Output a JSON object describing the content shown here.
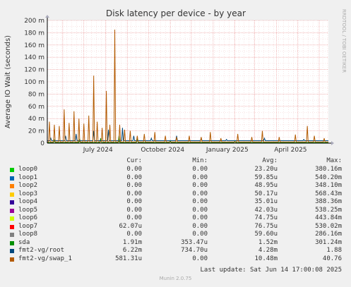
{
  "chart_data": {
    "type": "line",
    "title": "Disk latency per device - by year",
    "ylabel": "Average IO Wait (seconds)",
    "y_ticks": [
      "0",
      "20 m",
      "40 m",
      "60 m",
      "80 m",
      "100 m",
      "120 m",
      "140 m",
      "160 m",
      "180 m",
      "200 m"
    ],
    "y_tick_values": [
      0,
      0.02,
      0.04,
      0.06,
      0.08,
      0.1,
      0.12,
      0.14,
      0.16,
      0.18,
      0.2
    ],
    "ylim": [
      0,
      0.2
    ],
    "x_ticks": [
      "July 2024",
      "October 2024",
      "January 2025",
      "April 2025"
    ],
    "x_tick_dates": [
      "2024-07-01",
      "2024-10-01",
      "2025-01-01",
      "2025-04-01"
    ],
    "xlim": [
      "2024-05-10",
      "2025-06-14"
    ],
    "grid": true,
    "side_text": "RRDTOOL / TOBI OETIKER",
    "series": [
      {
        "name": "loop0",
        "color": "#00cc00"
      },
      {
        "name": "loop1",
        "color": "#0066b3"
      },
      {
        "name": "loop2",
        "color": "#ff8000"
      },
      {
        "name": "loop3",
        "color": "#ffcc00"
      },
      {
        "name": "loop4",
        "color": "#330099"
      },
      {
        "name": "loop5",
        "color": "#990099"
      },
      {
        "name": "loop6",
        "color": "#ccff00"
      },
      {
        "name": "loop7",
        "color": "#ff0000"
      },
      {
        "name": "loop8",
        "color": "#808080"
      },
      {
        "name": "sda",
        "color": "#008f00"
      },
      {
        "name": "fmt2-vg/root",
        "color": "#00487d"
      },
      {
        "name": "fmt2-vg/swap_1",
        "color": "#b35a00"
      }
    ],
    "swap_peaks": [
      {
        "date": "2024-05-13",
        "y": 0.035
      },
      {
        "date": "2024-05-20",
        "y": 0.03
      },
      {
        "date": "2024-05-27",
        "y": 0.028
      },
      {
        "date": "2024-06-03",
        "y": 0.055
      },
      {
        "date": "2024-06-10",
        "y": 0.033
      },
      {
        "date": "2024-06-17",
        "y": 0.052
      },
      {
        "date": "2024-06-24",
        "y": 0.04
      },
      {
        "date": "2024-07-01",
        "y": 0.032
      },
      {
        "date": "2024-07-08",
        "y": 0.045
      },
      {
        "date": "2024-07-15",
        "y": 0.11
      },
      {
        "date": "2024-07-20",
        "y": 0.035
      },
      {
        "date": "2024-07-27",
        "y": 0.025
      },
      {
        "date": "2024-08-02",
        "y": 0.085
      },
      {
        "date": "2024-08-07",
        "y": 0.03
      },
      {
        "date": "2024-08-14",
        "y": 0.185
      },
      {
        "date": "2024-08-21",
        "y": 0.03
      },
      {
        "date": "2024-08-28",
        "y": 0.022
      },
      {
        "date": "2024-09-05",
        "y": 0.02
      },
      {
        "date": "2024-09-15",
        "y": 0.012
      },
      {
        "date": "2024-09-25",
        "y": 0.015
      },
      {
        "date": "2024-10-10",
        "y": 0.018
      },
      {
        "date": "2024-10-25",
        "y": 0.012
      },
      {
        "date": "2024-11-10",
        "y": 0.01
      },
      {
        "date": "2024-11-28",
        "y": 0.012
      },
      {
        "date": "2024-12-15",
        "y": 0.01
      },
      {
        "date": "2024-12-28",
        "y": 0.018
      },
      {
        "date": "2025-01-12",
        "y": 0.008
      },
      {
        "date": "2025-02-05",
        "y": 0.015
      },
      {
        "date": "2025-02-25",
        "y": 0.01
      },
      {
        "date": "2025-03-12",
        "y": 0.02
      },
      {
        "date": "2025-04-05",
        "y": 0.01
      },
      {
        "date": "2025-04-28",
        "y": 0.014
      },
      {
        "date": "2025-05-15",
        "y": 0.028
      },
      {
        "date": "2025-05-25",
        "y": 0.012
      },
      {
        "date": "2025-06-08",
        "y": 0.008
      }
    ],
    "root_peaks": [
      {
        "date": "2024-05-15",
        "y": 0.008
      },
      {
        "date": "2024-06-05",
        "y": 0.012
      },
      {
        "date": "2024-06-20",
        "y": 0.015
      },
      {
        "date": "2024-07-15",
        "y": 0.02
      },
      {
        "date": "2024-08-05",
        "y": 0.022
      },
      {
        "date": "2024-08-25",
        "y": 0.025
      },
      {
        "date": "2024-09-10",
        "y": 0.012
      },
      {
        "date": "2024-10-05",
        "y": 0.008
      },
      {
        "date": "2024-11-10",
        "y": 0.012
      },
      {
        "date": "2024-12-15",
        "y": 0.008
      },
      {
        "date": "2025-01-20",
        "y": 0.006
      },
      {
        "date": "2025-03-15",
        "y": 0.008
      },
      {
        "date": "2025-05-10",
        "y": 0.006
      }
    ],
    "sda_peaks": [
      {
        "date": "2024-05-20",
        "y": 0.005
      },
      {
        "date": "2024-06-25",
        "y": 0.007
      },
      {
        "date": "2024-07-25",
        "y": 0.008
      },
      {
        "date": "2024-08-20",
        "y": 0.012
      },
      {
        "date": "2024-09-15",
        "y": 0.006
      },
      {
        "date": "2024-11-01",
        "y": 0.004
      },
      {
        "date": "2025-02-01",
        "y": 0.003
      }
    ]
  },
  "legend": {
    "headers": {
      "cur": "Cur:",
      "min": "Min:",
      "avg": "Avg:",
      "max": "Max:"
    },
    "rows": [
      {
        "name": "loop0",
        "color": "#00cc00",
        "cur": "0.00",
        "min": "0.00",
        "avg": "23.20u",
        "max": "380.16m"
      },
      {
        "name": "loop1",
        "color": "#0066b3",
        "cur": "0.00",
        "min": "0.00",
        "avg": "59.85u",
        "max": "540.20m"
      },
      {
        "name": "loop2",
        "color": "#ff8000",
        "cur": "0.00",
        "min": "0.00",
        "avg": "48.95u",
        "max": "348.10m"
      },
      {
        "name": "loop3",
        "color": "#ffcc00",
        "cur": "0.00",
        "min": "0.00",
        "avg": "50.17u",
        "max": "568.43m"
      },
      {
        "name": "loop4",
        "color": "#330099",
        "cur": "0.00",
        "min": "0.00",
        "avg": "35.01u",
        "max": "388.36m"
      },
      {
        "name": "loop5",
        "color": "#990099",
        "cur": "0.00",
        "min": "0.00",
        "avg": "42.03u",
        "max": "538.25m"
      },
      {
        "name": "loop6",
        "color": "#ccff00",
        "cur": "0.00",
        "min": "0.00",
        "avg": "74.75u",
        "max": "443.84m"
      },
      {
        "name": "loop7",
        "color": "#ff0000",
        "cur": "62.07u",
        "min": "0.00",
        "avg": "76.75u",
        "max": "530.02m"
      },
      {
        "name": "loop8",
        "color": "#808080",
        "cur": "0.00",
        "min": "0.00",
        "avg": "59.60u",
        "max": "286.16m"
      },
      {
        "name": "sda",
        "color": "#008f00",
        "cur": "1.91m",
        "min": "353.47u",
        "avg": "1.52m",
        "max": "301.24m"
      },
      {
        "name": "fmt2-vg/root",
        "color": "#00487d",
        "cur": "6.22m",
        "min": "734.70u",
        "avg": "4.28m",
        "max": "1.88"
      },
      {
        "name": "fmt2-vg/swap_1",
        "color": "#b35a00",
        "cur": "581.31u",
        "min": "0.00",
        "avg": "10.48m",
        "max": "40.76"
      }
    ]
  },
  "last_update": "Last update: Sat Jun 14 17:00:08 2025",
  "footer": "Munin 2.0.75"
}
